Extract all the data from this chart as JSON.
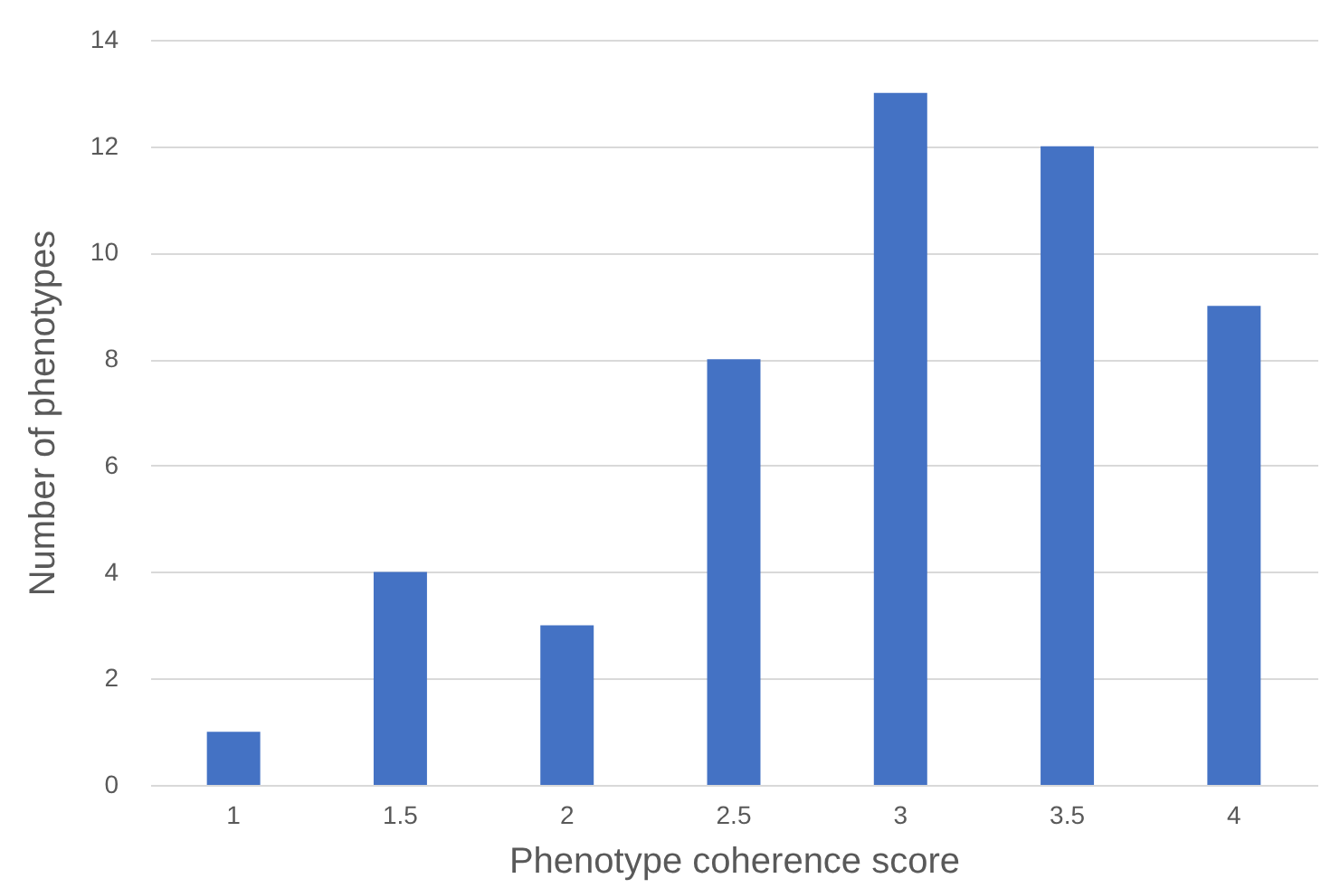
{
  "chart_data": {
    "type": "bar",
    "xlabel": "Phenotype coherence score",
    "ylabel": "Number of phenotypes",
    "categories": [
      "1",
      "1.5",
      "2",
      "2.5",
      "3",
      "3.5",
      "4"
    ],
    "series": [
      {
        "color": "#4472c4",
        "values": [
          1,
          4,
          3,
          8,
          13,
          12,
          9
        ]
      }
    ],
    "ylim": [
      0,
      14
    ],
    "yticks": [
      0,
      2,
      4,
      6,
      8,
      10,
      12,
      14
    ],
    "grid": "y"
  }
}
